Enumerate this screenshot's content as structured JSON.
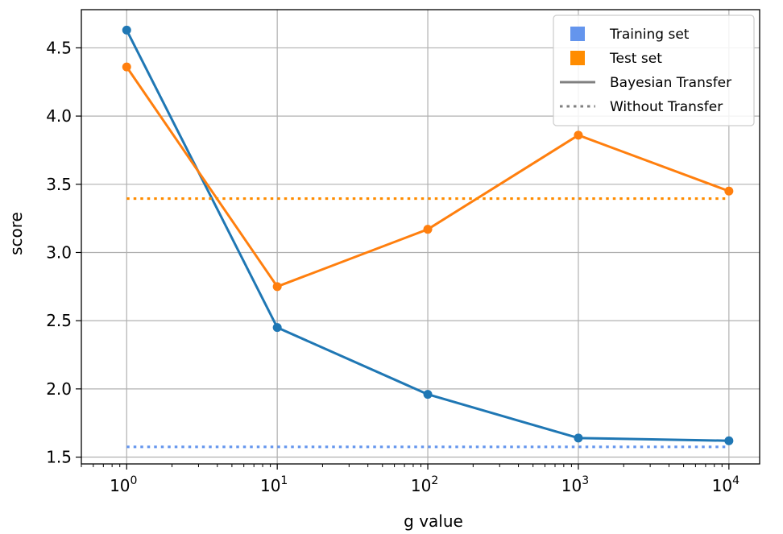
{
  "chart_data": {
    "type": "line",
    "xlabel": "g value",
    "ylabel": "score",
    "x_scale": "log",
    "x": [
      1,
      10,
      100,
      1000,
      10000
    ],
    "xticks": [
      {
        "value": 1,
        "base": "10",
        "exp": "0"
      },
      {
        "value": 10,
        "base": "10",
        "exp": "1"
      },
      {
        "value": 100,
        "base": "10",
        "exp": "2"
      },
      {
        "value": 1000,
        "base": "10",
        "exp": "3"
      },
      {
        "value": 10000,
        "base": "10",
        "exp": "4"
      }
    ],
    "yticks": [
      "1.5",
      "2.0",
      "2.5",
      "3.0",
      "3.5",
      "4.0",
      "4.5"
    ],
    "ylim": [
      1.45,
      4.78
    ],
    "grid": true,
    "series": [
      {
        "key": "training_bayes",
        "values": [
          4.63,
          2.45,
          1.96,
          1.64,
          1.62
        ],
        "color": "#1f77b4",
        "style": "solid",
        "markers": true
      },
      {
        "key": "test_bayes",
        "values": [
          4.36,
          2.75,
          3.17,
          3.86,
          3.45
        ],
        "color": "#ff7f0e",
        "style": "solid",
        "markers": true
      },
      {
        "key": "training_baseline",
        "values": [
          1.575,
          1.575,
          1.575,
          1.575,
          1.575
        ],
        "color": "#6495ed",
        "style": "dotted",
        "markers": false
      },
      {
        "key": "test_baseline",
        "values": [
          3.395,
          3.395,
          3.395,
          3.395,
          3.395
        ],
        "color": "#ff8c00",
        "style": "dotted",
        "markers": false
      }
    ],
    "legend": {
      "position": "top-right",
      "entries": [
        {
          "label": "Training set",
          "kind": "square",
          "color": "#6495ed"
        },
        {
          "label": "Test set",
          "kind": "square",
          "color": "#ff8c00"
        },
        {
          "label": "Bayesian Transfer",
          "kind": "solid-line",
          "color": "#808080"
        },
        {
          "label": "Without Transfer",
          "kind": "dotted-line",
          "color": "#808080"
        }
      ]
    }
  }
}
